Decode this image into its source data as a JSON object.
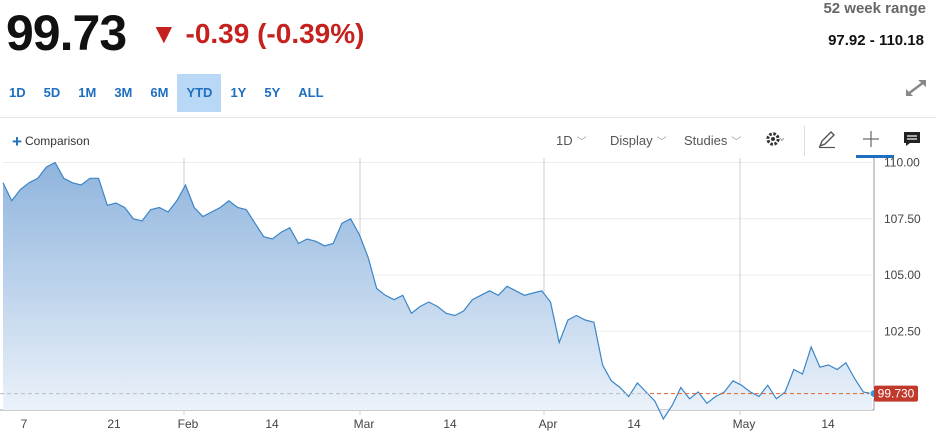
{
  "quote": {
    "price": "99.73",
    "change": "▼ -0.39 (-0.39%)",
    "range_label": "52 week range",
    "range_value": "97.92 - 110.18"
  },
  "range_tabs": [
    "1D",
    "5D",
    "1M",
    "3M",
    "6M",
    "YTD",
    "1Y",
    "5Y",
    "ALL"
  ],
  "active_tab": "YTD",
  "toolbar": {
    "comparison": "Comparison",
    "interval": "1D",
    "display": "Display",
    "studies": "Studies"
  },
  "icons": [
    "expand-icon",
    "plus-icon",
    "gear-icon",
    "pencil-icon",
    "crosshair-icon",
    "comment-icon"
  ],
  "colors": {
    "down": "#c5221f",
    "accent": "#1e6fbf",
    "line": "#3a86c8",
    "last_badge": "#c0392b"
  },
  "chart_data": {
    "type": "area",
    "x_tick_labels": [
      "7",
      "21",
      "Feb",
      "14",
      "Mar",
      "14",
      "Apr",
      "14",
      "May",
      "14"
    ],
    "y_tick_labels": [
      "110.00",
      "107.50",
      "105.00",
      "102.50"
    ],
    "ylim": [
      99.0,
      110.2
    ],
    "last_value_label": "99.730",
    "last_value": 99.73,
    "values": [
      109.1,
      108.3,
      108.8,
      109.1,
      109.3,
      109.8,
      110.0,
      109.3,
      109.1,
      109.0,
      109.3,
      109.3,
      108.1,
      108.2,
      108.0,
      107.5,
      107.4,
      107.9,
      108.0,
      107.8,
      108.3,
      109.0,
      108.0,
      107.6,
      107.8,
      108.0,
      108.3,
      108.0,
      107.9,
      107.3,
      106.7,
      106.6,
      106.9,
      107.1,
      106.4,
      106.6,
      106.5,
      106.3,
      106.4,
      107.3,
      107.5,
      106.8,
      105.8,
      104.4,
      104.1,
      103.9,
      104.1,
      103.3,
      103.6,
      103.8,
      103.6,
      103.3,
      103.2,
      103.4,
      103.9,
      104.1,
      104.3,
      104.1,
      104.5,
      104.3,
      104.1,
      104.2,
      104.3,
      103.8,
      102.0,
      103.0,
      103.2,
      103.0,
      102.9,
      101.0,
      100.3,
      100.0,
      99.6,
      100.2,
      99.8,
      99.4,
      98.6,
      99.2,
      100.0,
      99.5,
      99.8,
      99.3,
      99.6,
      99.8,
      100.3,
      100.1,
      99.8,
      99.6,
      100.1,
      99.5,
      99.8,
      100.8,
      100.6,
      101.8,
      100.9,
      101.0,
      100.8,
      101.1,
      100.4,
      99.8,
      99.73
    ]
  }
}
